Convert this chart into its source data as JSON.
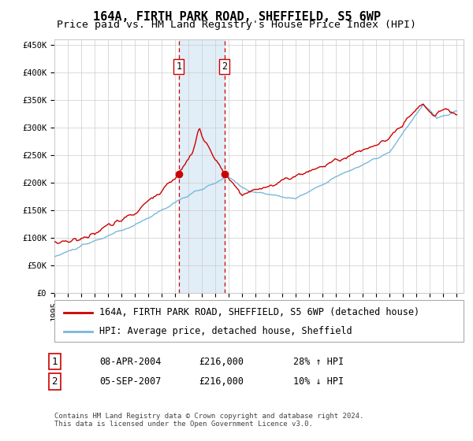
{
  "title": "164A, FIRTH PARK ROAD, SHEFFIELD, S5 6WP",
  "subtitle": "Price paid vs. HM Land Registry's House Price Index (HPI)",
  "xlabel": "",
  "ylabel": "",
  "ylim": [
    0,
    460000
  ],
  "yticks": [
    0,
    50000,
    100000,
    150000,
    200000,
    250000,
    300000,
    350000,
    400000,
    450000
  ],
  "ytick_labels": [
    "£0",
    "£50K",
    "£100K",
    "£150K",
    "£200K",
    "£250K",
    "£300K",
    "£350K",
    "£400K",
    "£450K"
  ],
  "x_start_year": 1995,
  "x_end_year": 2025,
  "hpi_color": "#7ab8d9",
  "price_color": "#cc0000",
  "marker_color": "#cc0000",
  "shade_color": "#daeaf5",
  "vline_color": "#cc0000",
  "grid_color": "#cccccc",
  "bg_color": "#ffffff",
  "legend_label_red": "164A, FIRTH PARK ROAD, SHEFFIELD, S5 6WP (detached house)",
  "legend_label_blue": "HPI: Average price, detached house, Sheffield",
  "sale1_label": "1",
  "sale1_date": "08-APR-2004",
  "sale1_price": "£216,000",
  "sale1_hpi": "28% ↑ HPI",
  "sale1_year": 2004.27,
  "sale1_value": 216000,
  "sale2_label": "2",
  "sale2_date": "05-SEP-2007",
  "sale2_price": "£216,000",
  "sale2_hpi": "10% ↓ HPI",
  "sale2_year": 2007.67,
  "sale2_value": 216000,
  "footer": "Contains HM Land Registry data © Crown copyright and database right 2024.\nThis data is licensed under the Open Government Licence v3.0.",
  "title_fontsize": 11,
  "subtitle_fontsize": 9.5,
  "tick_fontsize": 7.5,
  "legend_fontsize": 8.5,
  "annotation_fontsize": 8.5,
  "footer_fontsize": 6.5
}
